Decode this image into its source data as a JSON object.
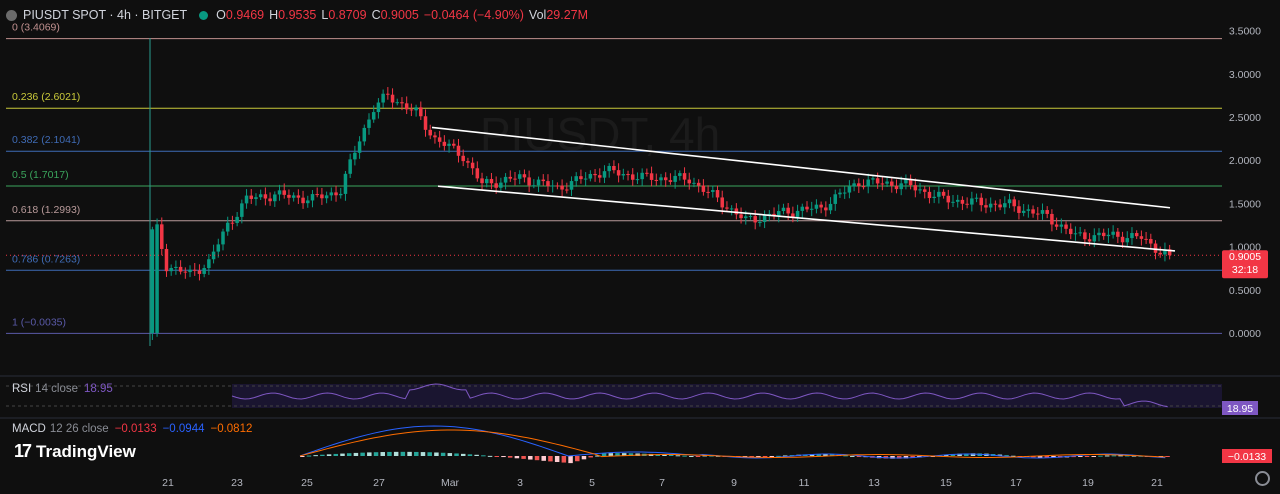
{
  "header": {
    "title": "PIUSDT SPOT · 4h · BITGET",
    "open_label": "O",
    "open": "0.9469",
    "high_label": "H",
    "high": "0.9535",
    "low_label": "L",
    "low": "0.8709",
    "close_label": "C",
    "close": "0.9005",
    "change": "−0.0464 (−4.90%)",
    "vol_label": "Vol",
    "vol": "29.27M"
  },
  "colors": {
    "background": "#0f0f0f",
    "up": "#089981",
    "down": "#f23645",
    "trendline": "#ffffff",
    "rsi": "#7e57c2",
    "macd": "#2962ff",
    "signal": "#ff6d00"
  },
  "rsi": {
    "name": "RSI",
    "params": "14 close",
    "value": "18.95"
  },
  "macd": {
    "name": "MACD",
    "params": "12 26 close",
    "hist": "−0.0133",
    "macd": "−0.0944",
    "signal": "−0.0812",
    "axis_value": "−0.0133"
  },
  "price_tag": {
    "price": "0.9005",
    "countdown": "32:18"
  },
  "brand": {
    "name": "TradingView"
  },
  "chart_data": {
    "type": "candlestick",
    "title": "PIUSDT SPOT · 4h · BITGET",
    "ylim": [
      -0.15,
      3.6
    ],
    "y_ticks": [
      "3.5000",
      "3.0000",
      "2.5000",
      "2.0000",
      "1.5000",
      "1.0000",
      "0.5000",
      "0.0000"
    ],
    "y_tick_values": [
      3.5,
      3.0,
      2.5,
      2.0,
      1.5,
      1.0,
      0.5,
      0.0
    ],
    "x_ticks": [
      "21",
      "23",
      "25",
      "27",
      "Mar",
      "3",
      "5",
      "7",
      "9",
      "11",
      "13",
      "15",
      "17",
      "19",
      "21"
    ],
    "fib_levels": [
      {
        "label": "0 (3.4069)",
        "value": 3.4069,
        "color": "#c0908f"
      },
      {
        "label": "0.236 (2.6021)",
        "value": 2.6021,
        "color": "#c9c93a"
      },
      {
        "label": "0.382 (2.1041)",
        "value": 2.1041,
        "color": "#3f6bb5"
      },
      {
        "label": "0.5 (1.7017)",
        "value": 1.7017,
        "color": "#3ba55c"
      },
      {
        "label": "0.618 (1.2993)",
        "value": 1.2993,
        "color": "#b89a9a"
      },
      {
        "label": "0.786 (0.7263)",
        "value": 0.7263,
        "color": "#3f6bb5"
      },
      {
        "label": "1 (−0.0035)",
        "value": -0.0035,
        "color": "#5a5aa8"
      }
    ],
    "trendlines": [
      {
        "from": [
          0,
          2.38
        ],
        "to": [
          1,
          1.45
        ]
      },
      {
        "from": [
          0,
          1.7
        ],
        "to": [
          1,
          0.95
        ]
      }
    ],
    "anchors": [
      {
        "i": 0,
        "v": 0.0
      },
      {
        "i": 1,
        "v": 1.2
      },
      {
        "i": 3,
        "v": 0.78
      },
      {
        "i": 8,
        "v": 0.68
      },
      {
        "i": 12,
        "v": 0.82
      },
      {
        "i": 16,
        "v": 1.25
      },
      {
        "i": 20,
        "v": 1.55
      },
      {
        "i": 26,
        "v": 1.6
      },
      {
        "i": 34,
        "v": 1.55
      },
      {
        "i": 40,
        "v": 1.65
      },
      {
        "i": 44,
        "v": 2.25
      },
      {
        "i": 47,
        "v": 2.6
      },
      {
        "i": 50,
        "v": 2.75
      },
      {
        "i": 56,
        "v": 2.55
      },
      {
        "i": 60,
        "v": 2.25
      },
      {
        "i": 66,
        "v": 2.05
      },
      {
        "i": 70,
        "v": 1.72
      },
      {
        "i": 78,
        "v": 1.8
      },
      {
        "i": 86,
        "v": 1.68
      },
      {
        "i": 96,
        "v": 1.88
      },
      {
        "i": 104,
        "v": 1.8
      },
      {
        "i": 114,
        "v": 1.78
      },
      {
        "i": 120,
        "v": 1.55
      },
      {
        "i": 126,
        "v": 1.3
      },
      {
        "i": 134,
        "v": 1.4
      },
      {
        "i": 142,
        "v": 1.45
      },
      {
        "i": 150,
        "v": 1.75
      },
      {
        "i": 160,
        "v": 1.72
      },
      {
        "i": 168,
        "v": 1.55
      },
      {
        "i": 176,
        "v": 1.5
      },
      {
        "i": 182,
        "v": 1.48
      },
      {
        "i": 190,
        "v": 1.35
      },
      {
        "i": 196,
        "v": 1.12
      },
      {
        "i": 204,
        "v": 1.13
      },
      {
        "i": 210,
        "v": 1.1
      },
      {
        "i": 214,
        "v": 0.95
      },
      {
        "i": 216,
        "v": 0.9005
      }
    ]
  }
}
